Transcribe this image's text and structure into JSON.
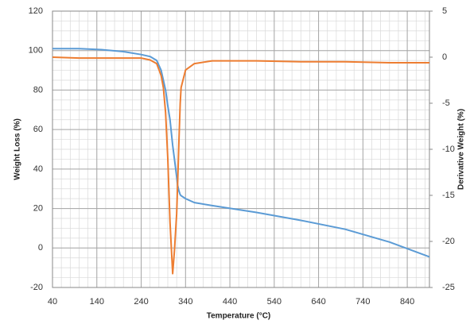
{
  "chart_data": {
    "type": "line",
    "x_label": "Temperature (°C)",
    "y_label": "Weight Loss (%)",
    "y2_label": "Derivative Weight (%)",
    "x": [
      40,
      100,
      150,
      200,
      240,
      260,
      275,
      285,
      290,
      295,
      300,
      305,
      311,
      315,
      320,
      322,
      325,
      328,
      330,
      340,
      360,
      400,
      500,
      600,
      700,
      800,
      890
    ],
    "series": [
      {
        "name": "Weight Loss",
        "color": "#5b9bd5",
        "axis": "y",
        "values": [
          101,
          101,
          100.5,
          99.5,
          98,
          97,
          95,
          90,
          85,
          80,
          72,
          65,
          52,
          45,
          36,
          32,
          29,
          27,
          26.5,
          25,
          23,
          21.5,
          18,
          14,
          9.5,
          3,
          -4.5
        ]
      },
      {
        "name": "Derivative Weight",
        "color": "#ed7d31",
        "axis": "y2",
        "values": [
          0,
          -0.1,
          -0.1,
          -0.1,
          -0.1,
          -0.3,
          -0.7,
          -2,
          -3.3,
          -6,
          -11,
          -17.9,
          -23.5,
          -21,
          -17,
          -14,
          -9.3,
          -5,
          -3.3,
          -1.4,
          -0.7,
          -0.4,
          -0.4,
          -0.5,
          -0.5,
          -0.6,
          -0.6
        ]
      }
    ],
    "xlim": [
      40,
      890
    ],
    "xticks": [
      40,
      140,
      240,
      340,
      440,
      540,
      640,
      740,
      840
    ],
    "ylim": [
      -20,
      120
    ],
    "yticks": [
      -20,
      0,
      20,
      40,
      60,
      80,
      100,
      120
    ],
    "y2lim": [
      -25,
      5
    ],
    "y2ticks": [
      -25,
      -20,
      -15,
      -10,
      -5,
      0,
      5
    ],
    "grid": true
  }
}
